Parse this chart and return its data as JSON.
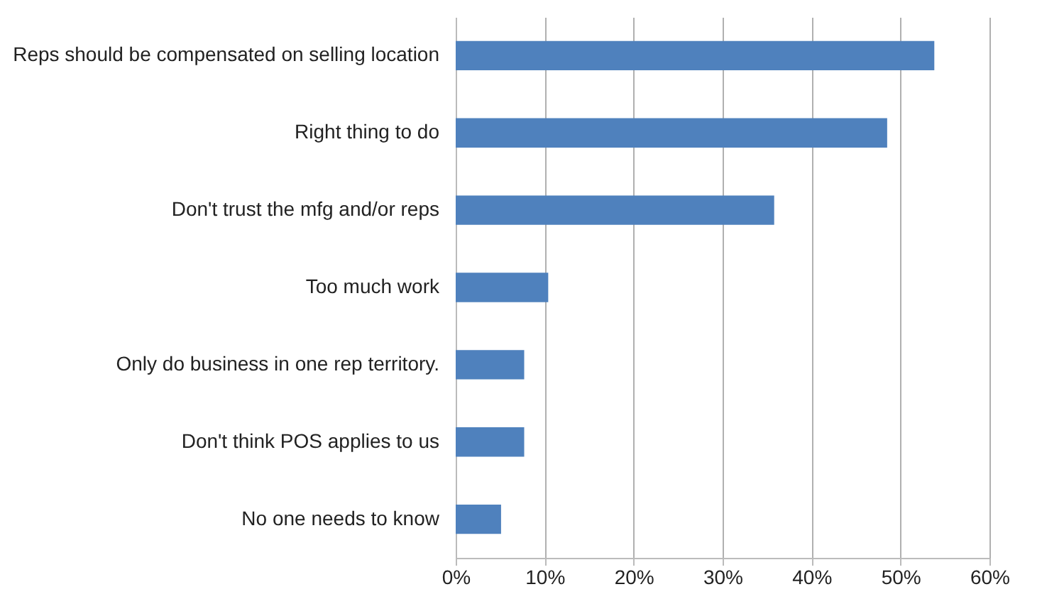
{
  "chart_data": {
    "type": "bar",
    "orientation": "horizontal",
    "categories": [
      "Reps should be compensated on selling location",
      "Right thing to do",
      "Don't trust the mfg and/or reps",
      "Too much work",
      "Only do business in one rep territory.",
      "Don't think POS applies to us",
      "No one needs to know"
    ],
    "values": [
      53.8,
      48.5,
      35.8,
      10.4,
      7.7,
      7.7,
      5.1
    ],
    "color": "#4f81bd",
    "xlim": [
      0,
      60
    ],
    "xticks": [
      {
        "value": 0,
        "label": "0%"
      },
      {
        "value": 10,
        "label": "10%"
      },
      {
        "value": 20,
        "label": "20%"
      },
      {
        "value": 30,
        "label": "30%"
      },
      {
        "value": 40,
        "label": "40%"
      },
      {
        "value": 50,
        "label": "50%"
      },
      {
        "value": 60,
        "label": "60%"
      }
    ],
    "grid": "x"
  }
}
